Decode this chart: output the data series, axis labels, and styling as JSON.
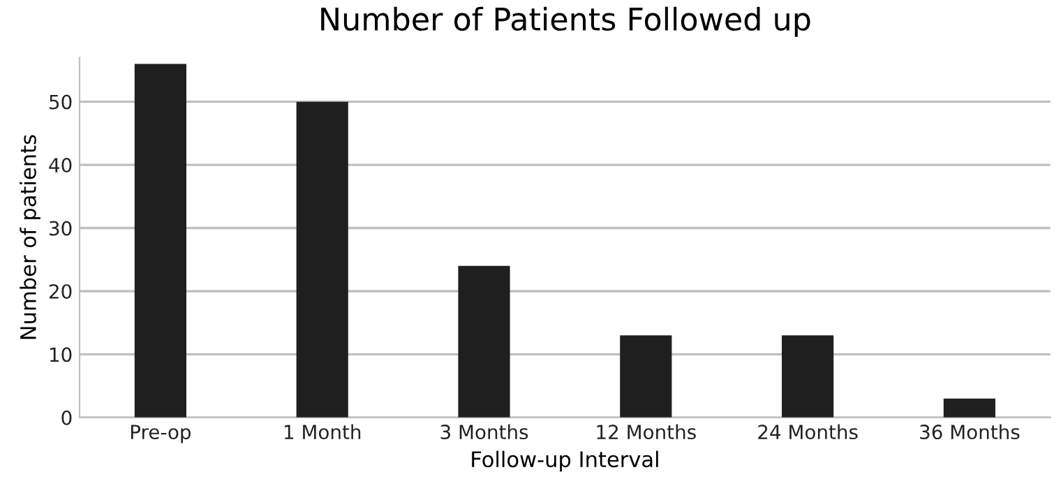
{
  "chart_data": {
    "type": "bar",
    "title": "Number of Patients Followed up",
    "xlabel": "Follow-up Interval",
    "ylabel": "Number of patients",
    "categories": [
      "Pre-op",
      "1 Month",
      "3 Months",
      "12 Months",
      "24 Months",
      "36 Months"
    ],
    "values": [
      56,
      50,
      24,
      13,
      13,
      3
    ],
    "color": "#1f1f1f",
    "ylim": [
      0,
      57
    ],
    "yticks": [
      0,
      10,
      20,
      30,
      40,
      50
    ],
    "grid": "y"
  }
}
